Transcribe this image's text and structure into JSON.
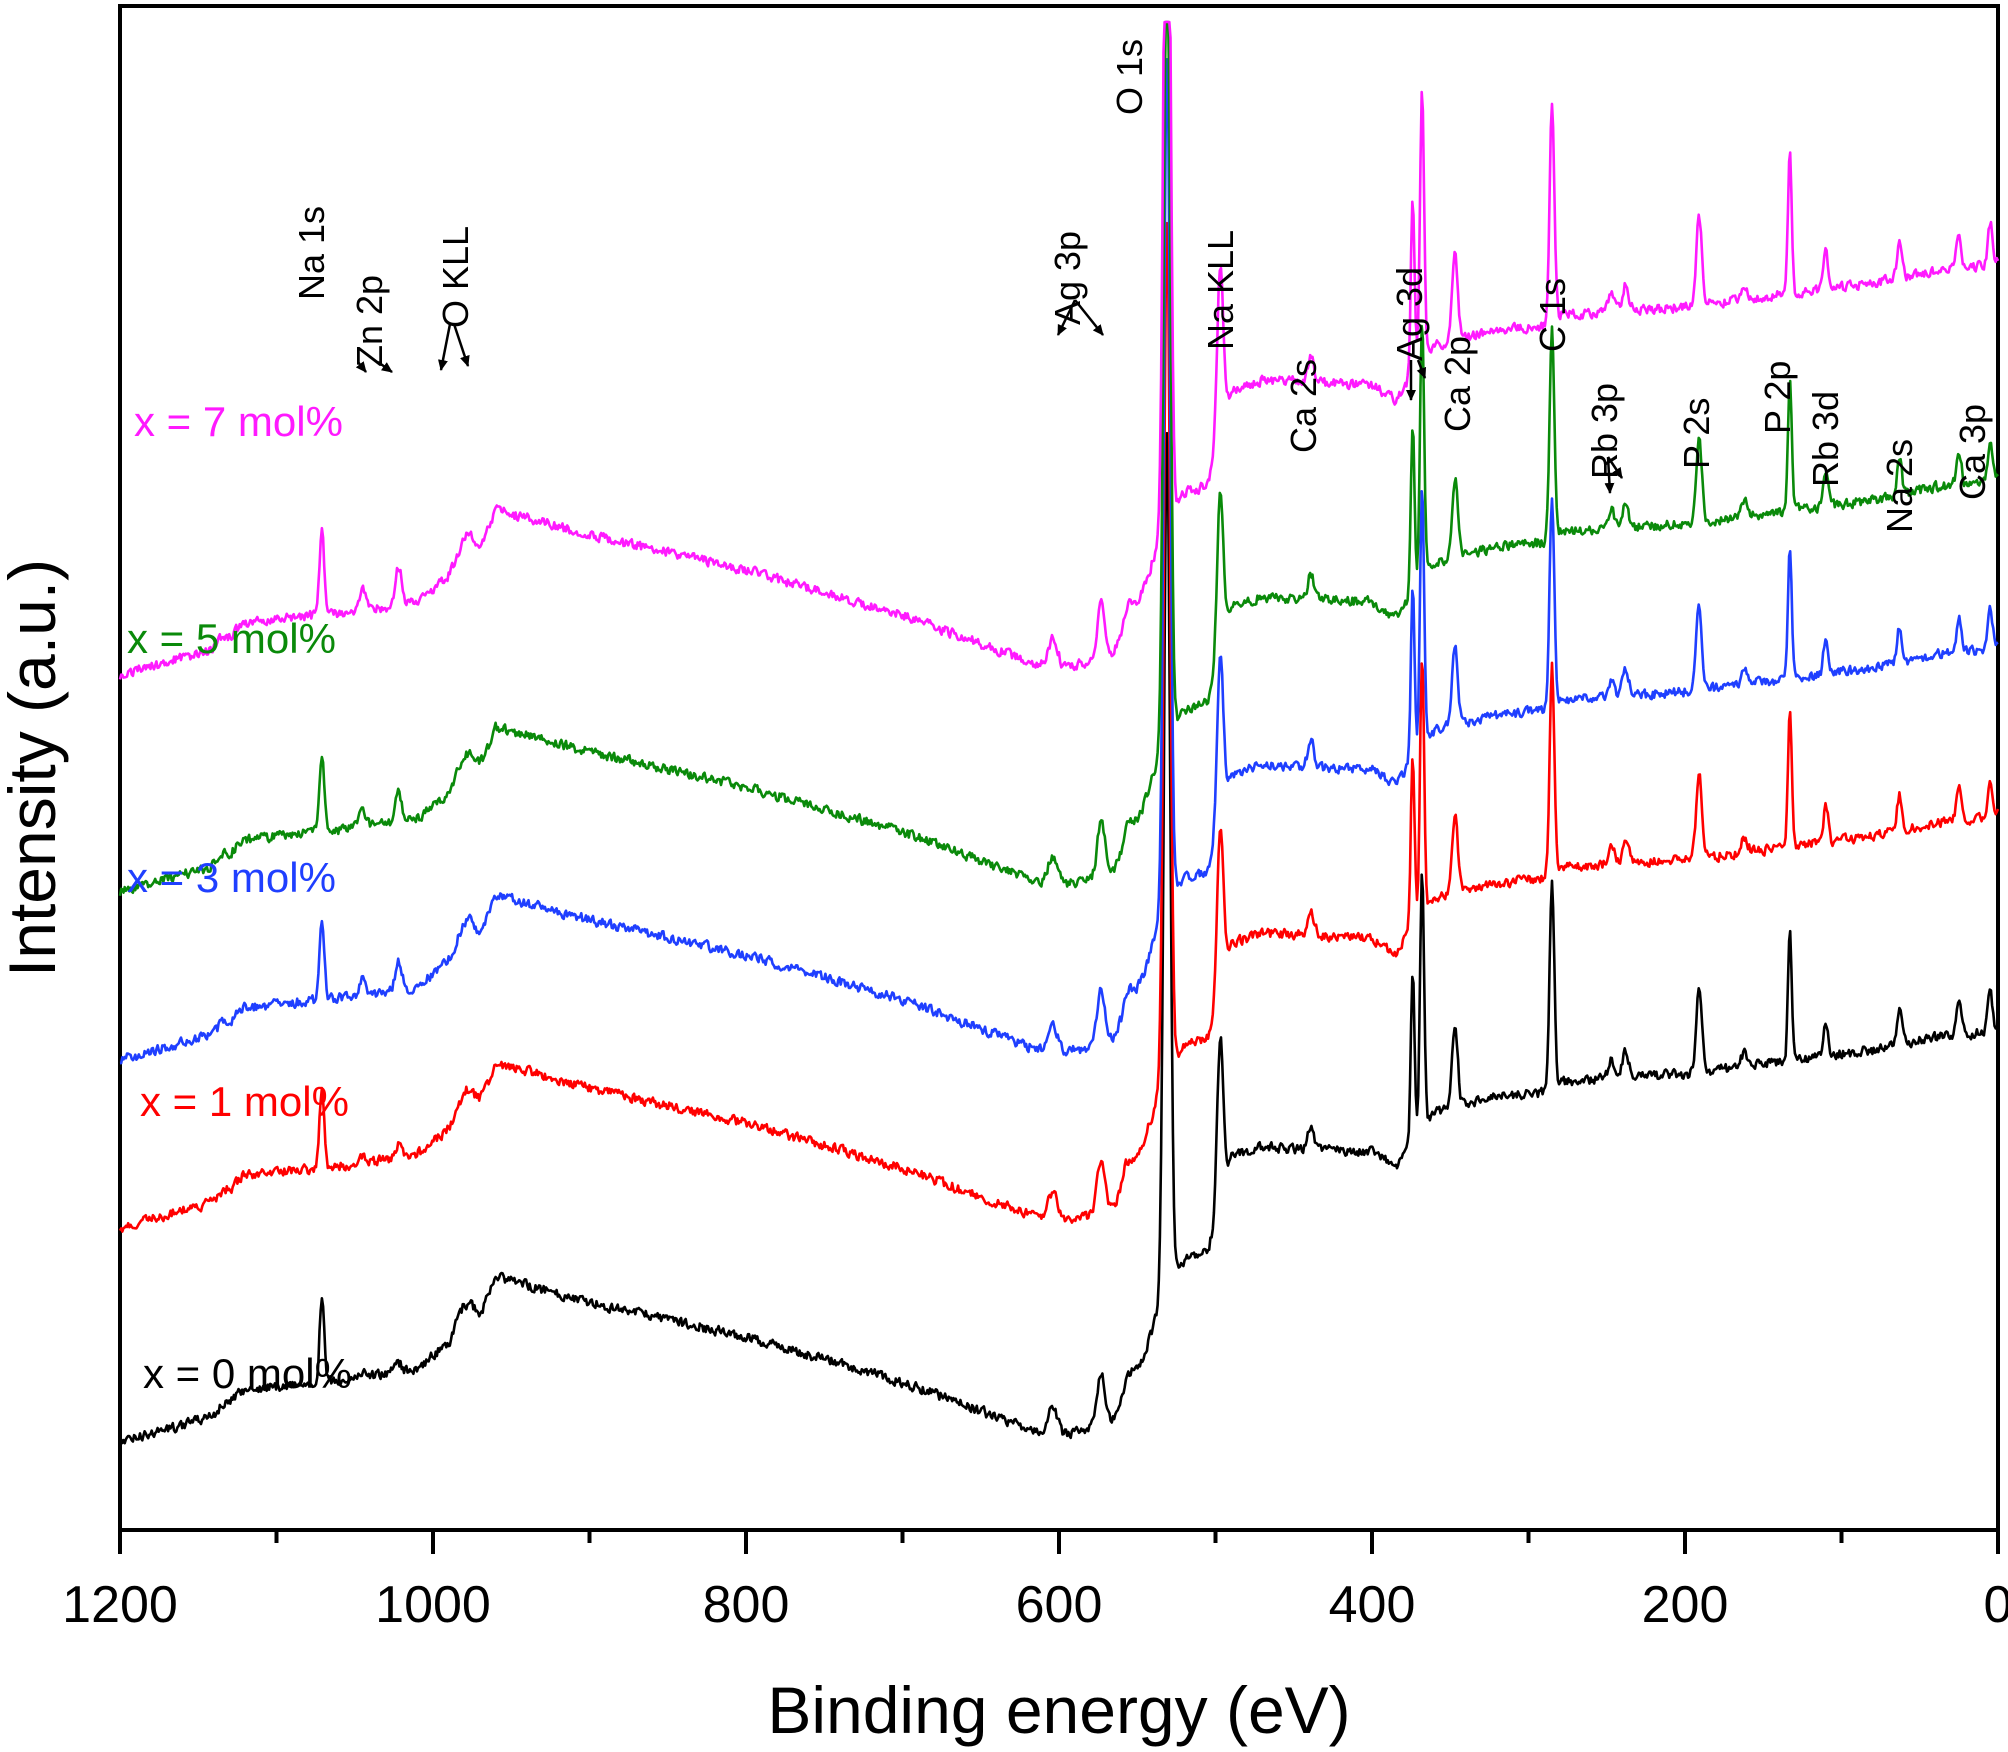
{
  "chart_data": {
    "type": "line",
    "title": "",
    "xlabel": "Binding energy (eV)",
    "ylabel": "Intensity (a.u.)",
    "xlim": [
      1200,
      0
    ],
    "x_reversed": true,
    "x_ticks": [
      1200,
      1000,
      800,
      600,
      400,
      200,
      0
    ],
    "x_minor_ticks": [
      1100,
      900,
      700,
      500,
      300,
      100
    ],
    "y_ticks": "none",
    "grid": false,
    "series": [
      {
        "name": "x = 0 mol%",
        "color": "#000000",
        "baseline": 0
      },
      {
        "name": "x = 1 mol%",
        "color": "#ff0000",
        "baseline": 1
      },
      {
        "name": "x = 3 mol%",
        "color": "#1f3fff",
        "baseline": 2
      },
      {
        "name": "x = 5 mol%",
        "color": "#0a8a0a",
        "baseline": 3
      },
      {
        "name": "x = 7 mol%",
        "color": "#ff1aff",
        "baseline": 4
      }
    ],
    "peaks_eV": {
      "Na 1s": 1071,
      "Zn 2p": 1022,
      "O KLL": 978,
      "Ag 3p": [
        604,
        573
      ],
      "O 1s": 531,
      "Na KLL": 497,
      "Ca 2s": 439,
      "Ag 3d": [
        374,
        368
      ],
      "Ca 2p": 347,
      "C 1s": 285,
      "Rb 3p": [
        247,
        238
      ],
      "P 2s": 191,
      "P 2p": 133,
      "Rb 3d": 110,
      "Na 2s": 63,
      "Ca 3p": 25
    },
    "annotations": [
      {
        "text": "Na 1s",
        "arrow": false
      },
      {
        "text": "Zn 2p",
        "arrow": true
      },
      {
        "text": "O KLL",
        "arrow": true
      },
      {
        "text": "Ag 3p",
        "arrow": true
      },
      {
        "text": "O 1s",
        "arrow": false
      },
      {
        "text": "Na KLL",
        "arrow": false
      },
      {
        "text": "Ca 2s",
        "arrow": false
      },
      {
        "text": "Ag 3d",
        "arrow": true
      },
      {
        "text": "Ca 2p",
        "arrow": false
      },
      {
        "text": "C 1s",
        "arrow": false
      },
      {
        "text": "Rb 3p",
        "arrow": true
      },
      {
        "text": "P 2s",
        "arrow": false
      },
      {
        "text": "P 2p",
        "arrow": false
      },
      {
        "text": "Rb 3d",
        "arrow": false
      },
      {
        "text": "Na 2s",
        "arrow": false
      },
      {
        "text": "Ca 3p",
        "arrow": false
      }
    ]
  }
}
